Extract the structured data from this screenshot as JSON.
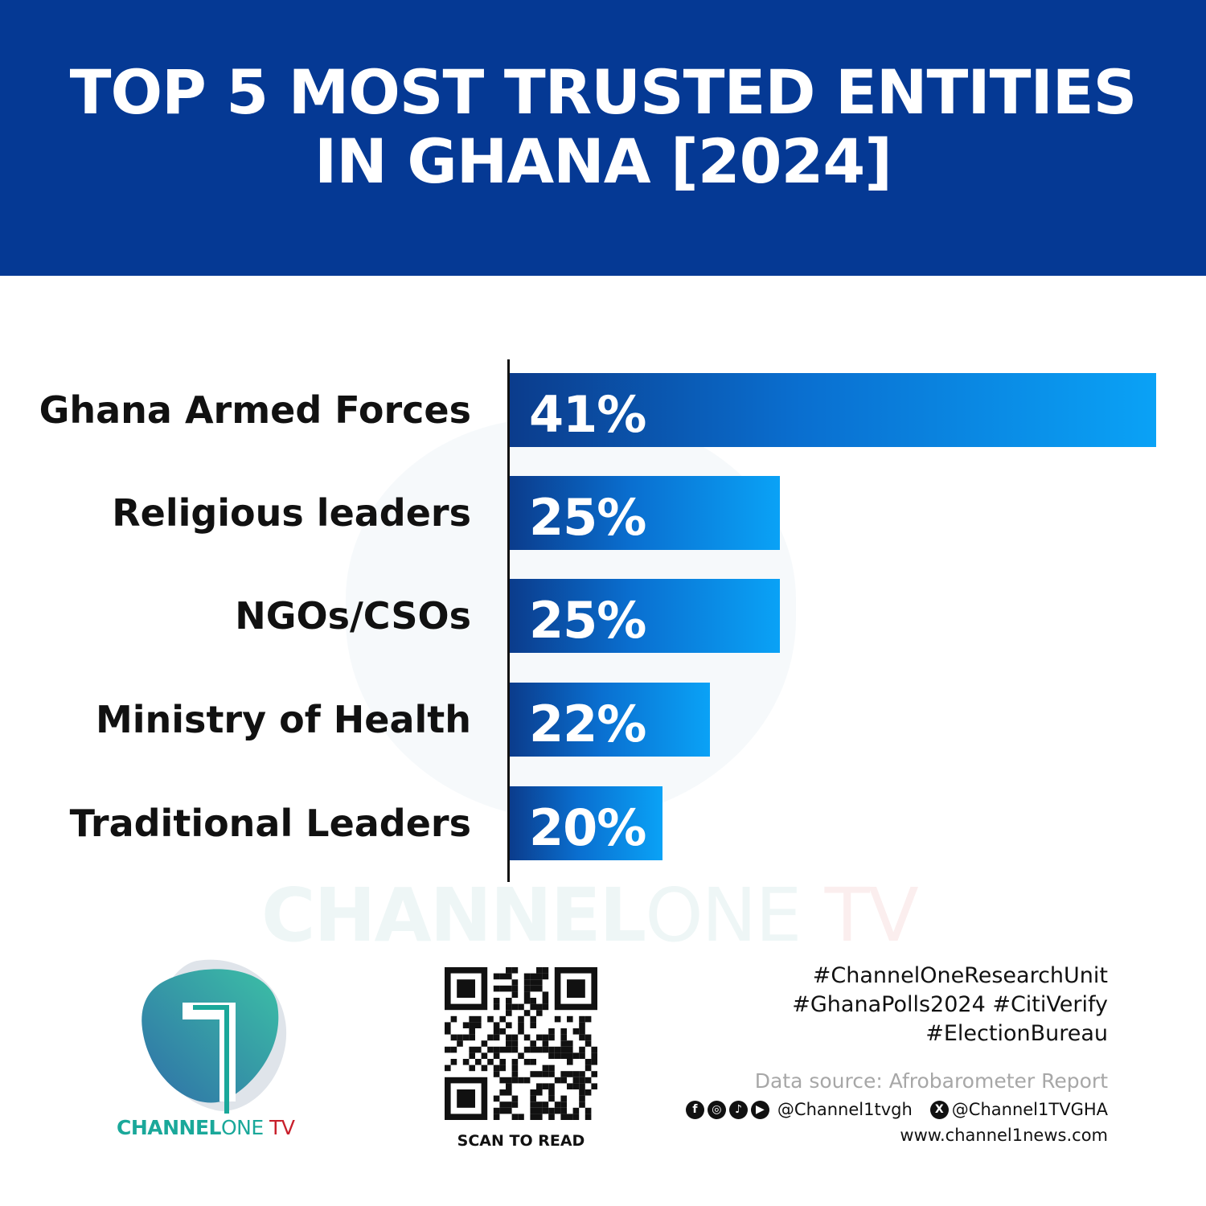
{
  "header": {
    "title_line1": "TOP 5 MOST TRUSTED ENTITIES",
    "title_line2": "IN GHANA [2024]"
  },
  "chart_data": {
    "type": "bar",
    "orientation": "horizontal",
    "title": "TOP 5 MOST TRUSTED ENTITIES IN GHANA [2024]",
    "categories": [
      "Ghana Armed Forces",
      "Religious leaders",
      "NGOs/CSOs",
      "Ministry of Health",
      "Traditional Leaders"
    ],
    "values": [
      41,
      25,
      25,
      22,
      20
    ],
    "data_labels": [
      "41%",
      "25%",
      "25%",
      "22%",
      "20%"
    ],
    "unit": "%",
    "xlim": [
      13.5,
      41
    ],
    "grid": false,
    "colors": {
      "bar_start": "#0b3c8c",
      "bar_end": "#0aa2f6"
    }
  },
  "watermark": {
    "part1": "CHANNEL",
    "part2": "ONE",
    "part3": "TV"
  },
  "logo": {
    "part1": "CHANNEL",
    "part2": "ONE",
    "part3": " TV",
    "colors": {
      "teal": "#1aa89a",
      "red": "#c8202c"
    }
  },
  "qr": {
    "caption": "SCAN TO READ"
  },
  "footer": {
    "hashtags": [
      "#ChannelOneResearchUnit",
      "#GhanaPolls2024 #CitiVerify",
      "#ElectionBureau"
    ],
    "source": "Data source: Afrobarometer Report",
    "social_icons": [
      "facebook-icon",
      "instagram-icon",
      "tiktok-icon",
      "youtube-icon",
      "x-icon"
    ],
    "handle1": "@Channel1tvgh",
    "handle2": "@Channel1TVGHA",
    "website": "www.channel1news.com"
  },
  "colors": {
    "header_bg": "#053994"
  }
}
